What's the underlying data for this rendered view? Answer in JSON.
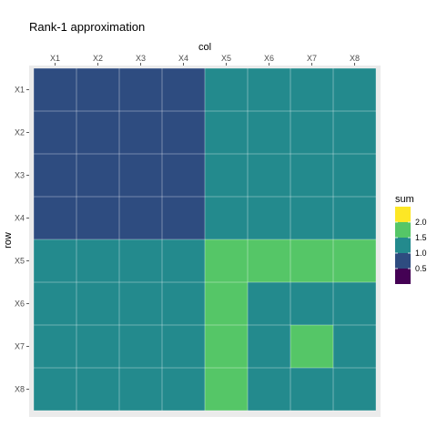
{
  "chart_data": {
    "type": "heatmap",
    "title": "Rank-1 approximation",
    "xlabel": "col",
    "ylabel": "row",
    "x_axis_position": "top",
    "x_categories": [
      "X1",
      "X2",
      "X3",
      "X4",
      "X5",
      "X6",
      "X7",
      "X8"
    ],
    "y_categories": [
      "X1",
      "X2",
      "X3",
      "X4",
      "X5",
      "X6",
      "X7",
      "X8"
    ],
    "values": [
      [
        1,
        1,
        1,
        1,
        1.5,
        1.5,
        1.5,
        1.5
      ],
      [
        1,
        1,
        1,
        1,
        1.5,
        1.5,
        1.5,
        1.5
      ],
      [
        1,
        1,
        1,
        1,
        1.5,
        1.5,
        1.5,
        1.5
      ],
      [
        1,
        1,
        1,
        1,
        1.5,
        1.5,
        1.5,
        1.5
      ],
      [
        1.5,
        1.5,
        1.5,
        1.5,
        2,
        2,
        2,
        2
      ],
      [
        1.5,
        1.5,
        1.5,
        1.5,
        2,
        1.5,
        1.5,
        1.5
      ],
      [
        1.5,
        1.5,
        1.5,
        1.5,
        2,
        1.5,
        2,
        1.5
      ],
      [
        1.5,
        1.5,
        1.5,
        1.5,
        2,
        1.5,
        1.5,
        1.5
      ]
    ],
    "color_scale": "viridis",
    "grid": true,
    "legend": {
      "title": "sum",
      "placement": "right",
      "breaks": [
        "2.0",
        "1.5",
        "1.0",
        "0.5"
      ],
      "keys": [
        {
          "value": 2.25,
          "color": "#fde725"
        },
        {
          "value": 2.0,
          "color": "#55c667"
        },
        {
          "value": 1.5,
          "color": "#238a8d"
        },
        {
          "value": 1.0,
          "color": "#2e4c80"
        },
        {
          "value": 0.5,
          "color": "#440154"
        }
      ]
    },
    "colors": {
      "1": "#2e4c80",
      "1.5": "#238a8d",
      "2": "#55c667",
      "panel": "#ebebeb",
      "gridline": "#ffffff"
    }
  }
}
